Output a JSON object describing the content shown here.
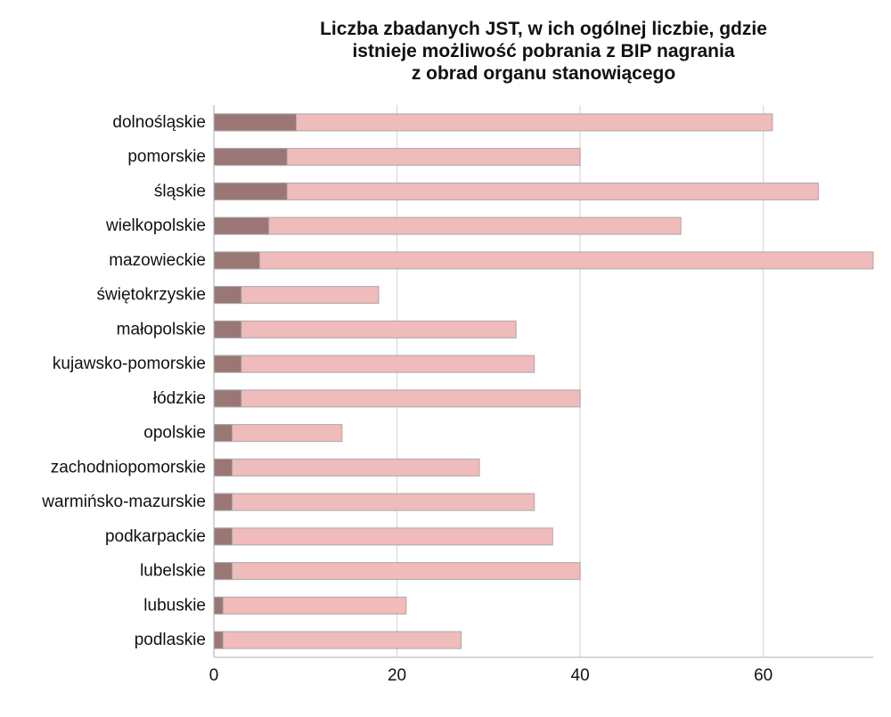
{
  "chart_data": {
    "type": "bar",
    "orientation": "horizontal",
    "stacked": true,
    "title_lines": [
      "Liczba zbadanych JST, w ich ogólnej liczbie, gdzie",
      "istnieje możliwość pobrania z BIP nagrania",
      "z obrad organu stanowiącego"
    ],
    "xlabel": "",
    "ylabel": "",
    "xlim": [
      0,
      72
    ],
    "xticks": [
      0,
      20,
      40,
      60
    ],
    "grid": "vertical",
    "legend": "none",
    "categories": [
      "dolnośląskie",
      "pomorskie",
      "śląskie",
      "wielkopolskie",
      "mazowieckie",
      "świętokrzyskie",
      "małopolskie",
      "kujawsko-pomorskie",
      "łódzkie",
      "opolskie",
      "zachodniopomorskie",
      "warmińsko-mazurskie",
      "podkarpackie",
      "lubelskie",
      "lubuskie",
      "podlaskie"
    ],
    "series": [
      {
        "color": "#9a7675",
        "values": [
          9,
          8,
          8,
          6,
          5,
          3,
          3,
          3,
          3,
          2,
          2,
          2,
          2,
          2,
          1,
          1
        ]
      },
      {
        "color": "#f0bbbb",
        "values": [
          61,
          40,
          66,
          51,
          72,
          18,
          33,
          35,
          40,
          14,
          29,
          35,
          37,
          40,
          21,
          27
        ]
      }
    ]
  }
}
